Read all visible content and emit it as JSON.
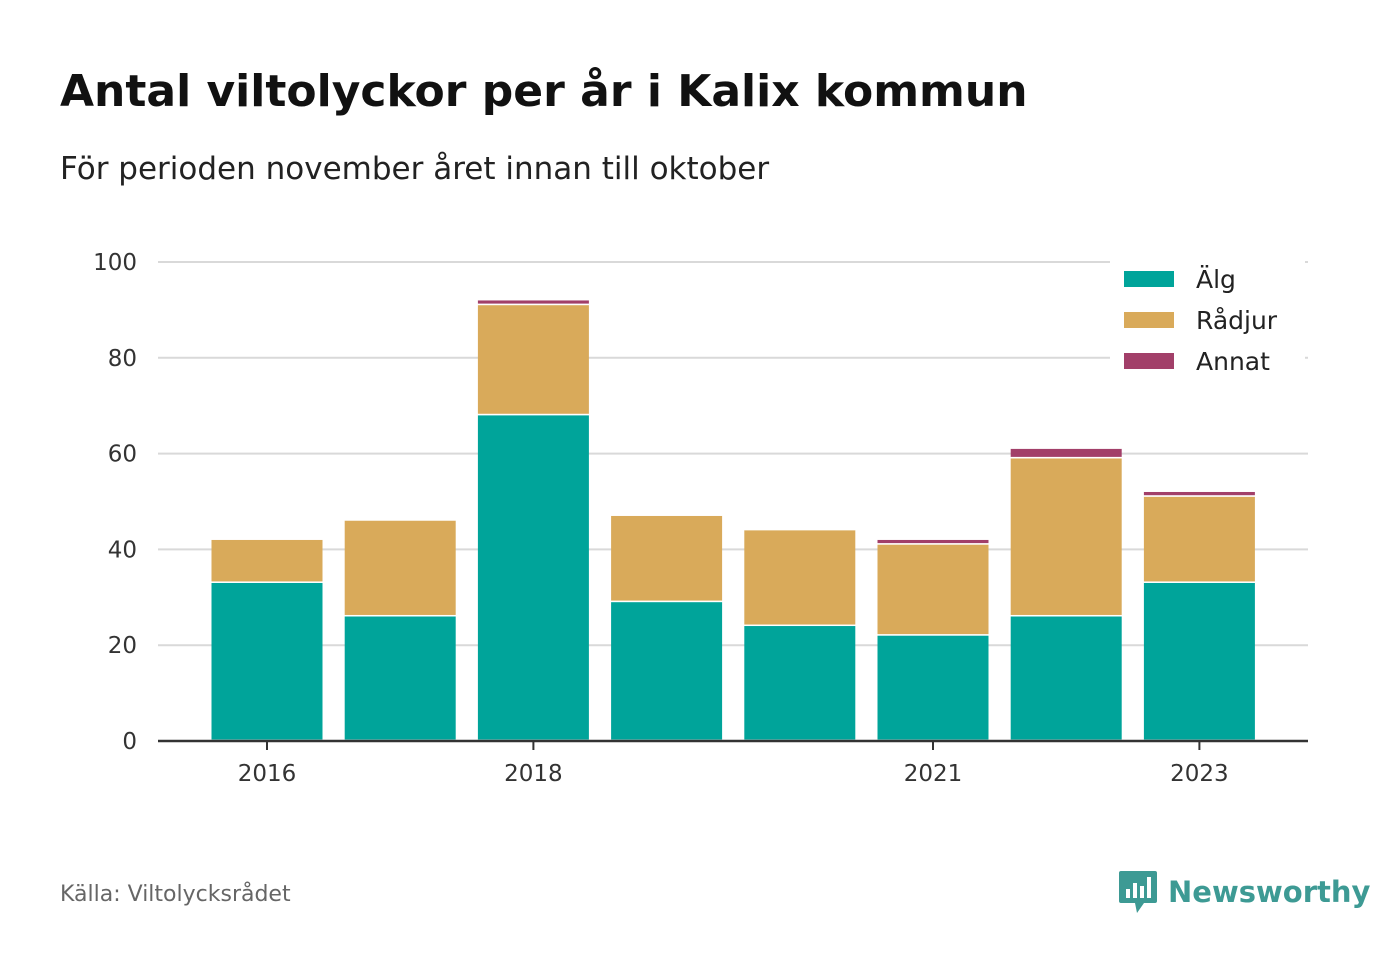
{
  "header": {
    "title": "Antal viltolyckor per år i Kalix kommun",
    "subtitle": "För perioden november året innan till oktober"
  },
  "footer": {
    "source": "Källa: Viltolycksrådet",
    "brand": "Newsworthy",
    "brand_icon": "bar-chart-speech-bubble-icon"
  },
  "colors": {
    "alg": "#00a49a",
    "radjur": "#d9aa5a",
    "annat": "#a23f69",
    "grid": "#d9d9d9",
    "axis": "#333333",
    "brand": "#3d9a94"
  },
  "chart_data": {
    "type": "bar",
    "stacked": true,
    "categories": [
      "2016",
      "2017",
      "2018",
      "2019",
      "2020",
      "2021",
      "2022",
      "2023"
    ],
    "x_tick_labels": [
      "2016",
      "2018",
      "2021",
      "2023"
    ],
    "series": [
      {
        "name": "Älg",
        "color": "#00a49a",
        "values": [
          33,
          26,
          68,
          29,
          24,
          22,
          26,
          33
        ]
      },
      {
        "name": "Rådjur",
        "color": "#d9aa5a",
        "values": [
          9,
          20,
          23,
          18,
          20,
          19,
          33,
          18
        ]
      },
      {
        "name": "Annat",
        "color": "#a23f69",
        "values": [
          0,
          0,
          1,
          0,
          0,
          1,
          2,
          1
        ]
      }
    ],
    "ylim": [
      0,
      100
    ],
    "y_ticks": [
      0,
      20,
      40,
      60,
      80,
      100
    ],
    "grid": true,
    "legend_position": "top-right"
  }
}
